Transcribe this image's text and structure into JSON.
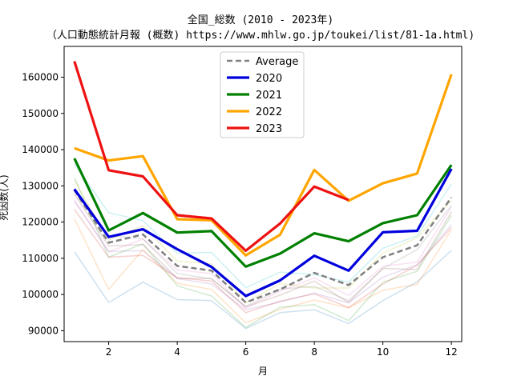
{
  "chart_data": {
    "type": "line",
    "title": "全国_総数 (2010 - 2023年)",
    "subtitle": "（人口動態統計月報 (概数) https://www.mhlw.go.jp/toukei/list/81-1a.html)",
    "xlabel": "月",
    "ylabel": "死因数(人)",
    "xlim": [
      0.7,
      12.3
    ],
    "ylim": [
      87000,
      168500
    ],
    "xticks": [
      2,
      4,
      6,
      8,
      10,
      12
    ],
    "yticks": [
      90000,
      100000,
      110000,
      120000,
      130000,
      140000,
      150000,
      160000
    ],
    "ytick_labels": [
      "90000",
      "100000",
      "110000",
      "120000",
      "130000",
      "140000",
      "150000",
      "160000"
    ],
    "legend_position": "upper-center",
    "x": [
      1,
      2,
      3,
      4,
      5,
      6,
      7,
      8,
      9,
      10,
      11,
      12
    ],
    "background_series": [
      {
        "color": "#1f77b4",
        "values": [
          111800,
          97800,
          103400,
          98600,
          98300,
          90600,
          95000,
          95800,
          92000,
          98300,
          103500,
          112200
        ]
      },
      {
        "color": "#ff7f0e",
        "values": [
          120900,
          101400,
          112400,
          103100,
          101400,
          92200,
          95900,
          98500,
          96300,
          101200,
          102800,
          117900
        ]
      },
      {
        "color": "#2ca02c",
        "values": [
          132300,
          110300,
          114000,
          102400,
          99600,
          90900,
          96500,
          97200,
          92800,
          103400,
          106400,
          121800
        ]
      },
      {
        "color": "#d62728",
        "values": [
          123500,
          110300,
          110800,
          104600,
          103700,
          95000,
          98200,
          100200,
          96400,
          102900,
          108100,
          118500
        ]
      },
      {
        "color": "#9467bd",
        "values": [
          125800,
          111900,
          112100,
          104400,
          102900,
          95800,
          97900,
          100400,
          97700,
          104800,
          108200,
          119300
        ]
      },
      {
        "color": "#8c564b",
        "values": [
          127700,
          113400,
          113800,
          104500,
          104400,
          96600,
          99800,
          103700,
          97800,
          107200,
          106900,
          122800
        ]
      },
      {
        "color": "#e377c2",
        "values": [
          126000,
          111800,
          115300,
          106800,
          105800,
          96200,
          100900,
          104600,
          99700,
          107800,
          108900,
          124200
        ]
      },
      {
        "color": "#7f7f7f",
        "values": [
          128500,
          116300,
          115400,
          105800,
          104300,
          96700,
          101500,
          102200,
          98300,
          107200,
          112400,
          124600
        ]
      },
      {
        "color": "#bcbd22",
        "values": [
          131500,
          115000,
          119000,
          109200,
          108500,
          97700,
          103000,
          101800,
          101800,
          111400,
          115700,
          126000
        ]
      },
      {
        "color": "#17becf",
        "values": [
          136000,
          122600,
          120400,
          111400,
          111600,
          101900,
          106200,
          105500,
          103400,
          112800,
          116200,
          130500
        ]
      }
    ],
    "series": [
      {
        "name": "Average",
        "color": "#808080",
        "dash": true,
        "values": [
          128800,
          114300,
          116600,
          107900,
          106600,
          97800,
          101400,
          106000,
          102600,
          110300,
          113600,
          126800
        ]
      },
      {
        "name": "2020",
        "color": "#0000dd",
        "dash": false,
        "values": [
          129100,
          115900,
          118000,
          112500,
          107600,
          99600,
          103900,
          110700,
          106600,
          117200,
          117600,
          134700
        ]
      },
      {
        "name": "2021",
        "color": "#008000",
        "dash": false,
        "values": [
          137600,
          117700,
          122500,
          117100,
          117500,
          107700,
          111300,
          116900,
          114700,
          119700,
          121900,
          135800
        ]
      },
      {
        "name": "2022",
        "color": "#ffa500",
        "dash": false,
        "values": [
          140400,
          137000,
          138200,
          120800,
          120500,
          110800,
          116500,
          134400,
          125900,
          130700,
          133400,
          160800
        ]
      },
      {
        "name": "2023",
        "color": "#ee1111",
        "dash": false,
        "values": [
          164400,
          134300,
          132600,
          121900,
          121000,
          112100,
          119600,
          129800,
          126100,
          null,
          null,
          null
        ]
      }
    ]
  }
}
